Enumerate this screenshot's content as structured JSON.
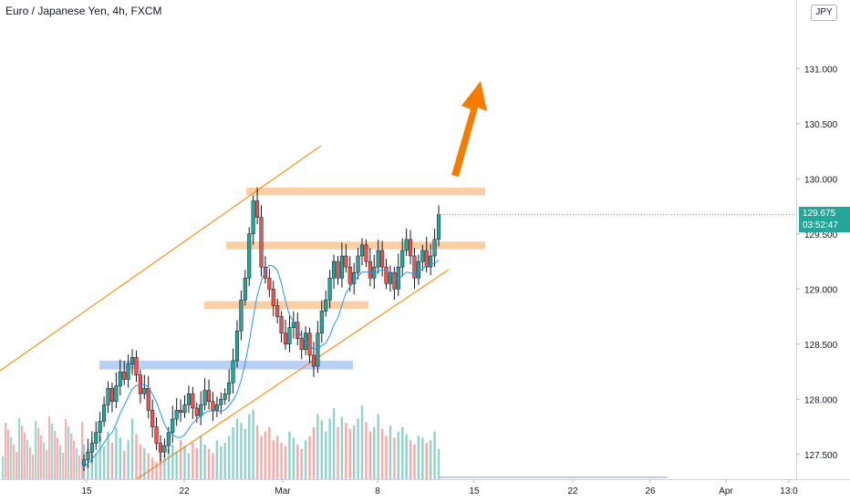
{
  "header": {
    "title": "Euro / Japanese Yen, 4h, FXCM",
    "currency": "JPY"
  },
  "price_label": {
    "price": "129.675",
    "countdown": "03:52:47"
  },
  "colors": {
    "up": "#26a69a",
    "down": "#ef5350",
    "channel": "#f7931a",
    "resistance_zone": "#f9c796",
    "support_zone": "#aec8f0",
    "arrow": "#f57c00",
    "ma": "#2196f3",
    "axis_text": "#131722"
  },
  "chart_data": {
    "type": "candlestick",
    "y_ticks": [
      "131.000",
      "130.500",
      "130.000",
      "129.500",
      "129.000",
      "128.500",
      "128.000",
      "127.500"
    ],
    "x_ticks": [
      "15",
      "22",
      "Mar",
      "8",
      "15",
      "22",
      "26",
      "Apr",
      "13:0"
    ],
    "last_price": 129.675,
    "zones": [
      {
        "kind": "resistance",
        "low": 129.85,
        "high": 129.92
      },
      {
        "kind": "resistance",
        "low": 129.36,
        "high": 129.43
      },
      {
        "kind": "resistance",
        "low": 128.82,
        "high": 128.89
      },
      {
        "kind": "support",
        "low": 128.27,
        "high": 128.35
      }
    ],
    "closes": [
      127.45,
      127.52,
      127.6,
      127.7,
      127.8,
      127.95,
      128.1,
      127.98,
      128.12,
      128.25,
      128.18,
      128.32,
      128.38,
      128.22,
      128.05,
      128.1,
      127.9,
      127.75,
      127.6,
      127.52,
      127.58,
      127.7,
      127.82,
      127.9,
      127.88,
      127.95,
      128.05,
      127.92,
      127.85,
      127.95,
      128.08,
      127.98,
      127.9,
      127.95,
      128.0,
      128.05,
      128.15,
      128.35,
      128.62,
      128.9,
      129.1,
      129.5,
      129.8,
      129.65,
      129.2,
      129.1,
      129.0,
      128.85,
      128.75,
      128.6,
      128.5,
      128.65,
      128.7,
      128.55,
      128.45,
      128.6,
      128.4,
      128.3,
      128.6,
      128.8,
      128.9,
      129.1,
      129.25,
      129.1,
      129.3,
      129.2,
      129.05,
      129.15,
      129.3,
      129.4,
      129.25,
      129.1,
      129.2,
      129.35,
      129.2,
      129.05,
      129.15,
      129.0,
      129.2,
      129.35,
      129.45,
      129.3,
      129.1,
      129.25,
      129.35,
      129.2,
      129.3,
      129.45,
      129.675
    ],
    "volumes": [
      0.4,
      0.35,
      0.45,
      0.3,
      0.5,
      0.38,
      0.55,
      0.42,
      0.6,
      0.48,
      0.33,
      0.45,
      0.7,
      0.52,
      0.4,
      0.36,
      0.3,
      0.25,
      0.2,
      0.3,
      0.28,
      0.35,
      0.4,
      0.32,
      0.45,
      0.38,
      0.3,
      0.42,
      0.36,
      0.5,
      0.4,
      0.35,
      0.3,
      0.45,
      0.38,
      0.42,
      0.5,
      0.6,
      0.7,
      0.65,
      0.58,
      0.75,
      0.8,
      0.62,
      0.5,
      0.55,
      0.6,
      0.45,
      0.5,
      0.42,
      0.38,
      0.55,
      0.48,
      0.4,
      0.35,
      0.45,
      0.5,
      0.6,
      0.75,
      0.68,
      0.55,
      0.7,
      0.82,
      0.6,
      0.72,
      0.65,
      0.58,
      0.62,
      0.7,
      0.85,
      0.66,
      0.55,
      0.6,
      0.75,
      0.58,
      0.5,
      0.62,
      0.48,
      0.55,
      0.6,
      0.52,
      0.45,
      0.4,
      0.5,
      0.48,
      0.42,
      0.45,
      0.55,
      0.35
    ]
  }
}
